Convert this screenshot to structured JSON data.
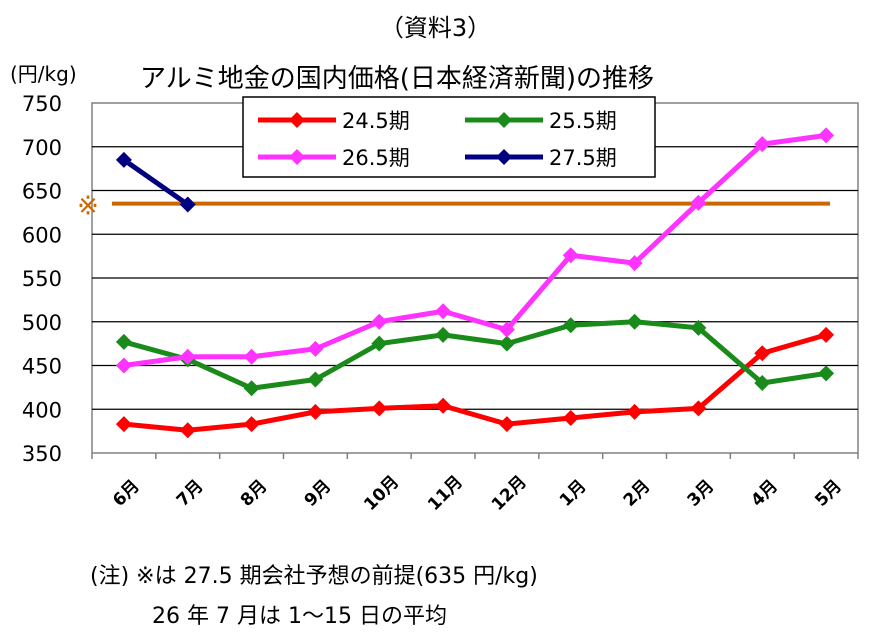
{
  "header": {
    "doc_label": "（資料3）",
    "unit": "(円/kg)"
  },
  "notes": {
    "line1": "(注) ※は 27.5 期会社予想の前提(635 円/kg)",
    "line2": "26 年 7 月は 1～15 日の平均"
  },
  "chart_data": {
    "type": "line",
    "title": "アルミ地金の国内価格(日本経済新聞)の推移",
    "ylabel": "(円/kg)",
    "ylim": [
      350,
      750
    ],
    "yticks": [
      "350",
      "400",
      "450",
      "500",
      "550",
      "600",
      "650",
      "700",
      "750"
    ],
    "categories": [
      "6月",
      "7月",
      "8月",
      "9月",
      "10月",
      "11月",
      "12月",
      "1月",
      "2月",
      "3月",
      "4月",
      "5月"
    ],
    "grid": true,
    "legend_position": "top",
    "series": [
      {
        "name": "24.5期",
        "color": "#ff0000",
        "values": [
          383,
          376,
          383,
          397,
          401,
          404,
          383,
          390,
          397,
          401,
          464,
          485
        ]
      },
      {
        "name": "25.5期",
        "color": "#1a8a1a",
        "values": [
          477,
          457,
          424,
          434,
          475,
          485,
          475,
          496,
          500,
          493,
          430,
          441
        ]
      },
      {
        "name": "26.5期",
        "color": "#ff33ff",
        "values": [
          450,
          460,
          460,
          469,
          500,
          512,
          491,
          576,
          567,
          636,
          703,
          713
        ]
      },
      {
        "name": "27.5期",
        "color": "#000080",
        "values": [
          685,
          634,
          null,
          null,
          null,
          null,
          null,
          null,
          null,
          null,
          null,
          null
        ]
      }
    ],
    "reference": {
      "symbol": "※",
      "value": 635,
      "color": "#cc6600"
    }
  }
}
